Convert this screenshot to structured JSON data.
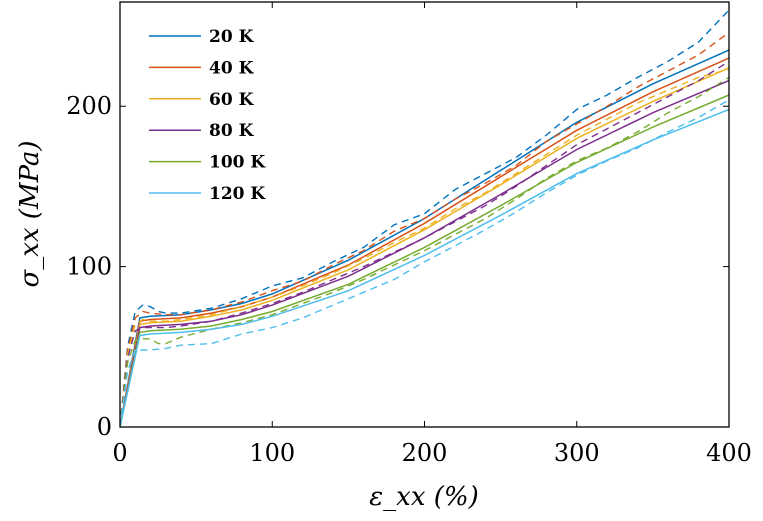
{
  "chart_data": {
    "type": "line",
    "xlabel": "ε_xx (%)",
    "ylabel": "σ_xx (MPa)",
    "xlim": [
      0,
      400
    ],
    "ylim": [
      0,
      265
    ],
    "x_ticks": [
      0,
      100,
      200,
      300,
      400
    ],
    "y_ticks": [
      0,
      100,
      200
    ],
    "grid": false,
    "legend_position": "top-left",
    "line_styles": {
      "solid": "model",
      "dashed": "experiment"
    },
    "series": [
      {
        "name": "20 K",
        "color": "#0072BD",
        "solid": [
          [
            0,
            0
          ],
          [
            13,
            68
          ],
          [
            20,
            69
          ],
          [
            40,
            70
          ],
          [
            60,
            73
          ],
          [
            80,
            77
          ],
          [
            100,
            83
          ],
          [
            150,
            104
          ],
          [
            200,
            130
          ],
          [
            250,
            160
          ],
          [
            300,
            190
          ],
          [
            350,
            214
          ],
          [
            400,
            235
          ]
        ],
        "dashed": [
          [
            0,
            0
          ],
          [
            5,
            50
          ],
          [
            10,
            72
          ],
          [
            15,
            76
          ],
          [
            20,
            75
          ],
          [
            25,
            72
          ],
          [
            30,
            71
          ],
          [
            40,
            71
          ],
          [
            60,
            74
          ],
          [
            80,
            80
          ],
          [
            100,
            88
          ],
          [
            120,
            93
          ],
          [
            140,
            103
          ],
          [
            160,
            112
          ],
          [
            180,
            126
          ],
          [
            200,
            133
          ],
          [
            220,
            148
          ],
          [
            240,
            158
          ],
          [
            260,
            168
          ],
          [
            280,
            182
          ],
          [
            300,
            198
          ],
          [
            320,
            207
          ],
          [
            340,
            218
          ],
          [
            360,
            228
          ],
          [
            380,
            240
          ],
          [
            400,
            260
          ]
        ]
      },
      {
        "name": "40 K",
        "color": "#D95319",
        "solid": [
          [
            0,
            0
          ],
          [
            13,
            66
          ],
          [
            20,
            67
          ],
          [
            40,
            68
          ],
          [
            60,
            71
          ],
          [
            80,
            75
          ],
          [
            100,
            81
          ],
          [
            150,
            101
          ],
          [
            200,
            127
          ],
          [
            250,
            156
          ],
          [
            300,
            185
          ],
          [
            350,
            209
          ],
          [
            400,
            230
          ]
        ],
        "dashed": [
          [
            0,
            0
          ],
          [
            5,
            48
          ],
          [
            10,
            68
          ],
          [
            15,
            72
          ],
          [
            20,
            71
          ],
          [
            30,
            70
          ],
          [
            40,
            70
          ],
          [
            60,
            73
          ],
          [
            80,
            78
          ],
          [
            100,
            85
          ],
          [
            120,
            91
          ],
          [
            140,
            101
          ],
          [
            160,
            110
          ],
          [
            180,
            122
          ],
          [
            200,
            130
          ],
          [
            220,
            142
          ],
          [
            240,
            152
          ],
          [
            260,
            163
          ],
          [
            280,
            178
          ],
          [
            300,
            189
          ],
          [
            320,
            200
          ],
          [
            340,
            212
          ],
          [
            360,
            222
          ],
          [
            380,
            232
          ],
          [
            400,
            246
          ]
        ]
      },
      {
        "name": "60 K",
        "color": "#EDB120",
        "solid": [
          [
            0,
            0
          ],
          [
            13,
            64
          ],
          [
            20,
            65
          ],
          [
            40,
            66
          ],
          [
            60,
            69
          ],
          [
            80,
            73
          ],
          [
            100,
            79
          ],
          [
            150,
            98
          ],
          [
            200,
            123
          ],
          [
            250,
            151
          ],
          [
            300,
            180
          ],
          [
            350,
            203
          ],
          [
            400,
            224
          ]
        ],
        "dashed": [
          [
            0,
            0
          ],
          [
            5,
            45
          ],
          [
            10,
            64
          ],
          [
            15,
            67
          ],
          [
            20,
            66
          ],
          [
            30,
            66
          ],
          [
            40,
            67
          ],
          [
            60,
            70
          ],
          [
            80,
            75
          ],
          [
            100,
            81
          ],
          [
            120,
            88
          ],
          [
            140,
            96
          ],
          [
            160,
            105
          ],
          [
            180,
            115
          ],
          [
            200,
            124
          ],
          [
            220,
            136
          ],
          [
            240,
            146
          ],
          [
            260,
            158
          ],
          [
            280,
            170
          ],
          [
            300,
            182
          ],
          [
            320,
            192
          ],
          [
            340,
            202
          ],
          [
            360,
            210
          ],
          [
            380,
            218
          ],
          [
            400,
            223
          ]
        ]
      },
      {
        "name": "80 K",
        "color": "#7E2F8E",
        "solid": [
          [
            0,
            0
          ],
          [
            13,
            62
          ],
          [
            20,
            63
          ],
          [
            40,
            64
          ],
          [
            60,
            66
          ],
          [
            80,
            70
          ],
          [
            100,
            76
          ],
          [
            150,
            94
          ],
          [
            200,
            118
          ],
          [
            250,
            145
          ],
          [
            300,
            173
          ],
          [
            350,
            196
          ],
          [
            400,
            216
          ]
        ],
        "dashed": [
          [
            0,
            0
          ],
          [
            5,
            43
          ],
          [
            10,
            60
          ],
          [
            15,
            62
          ],
          [
            20,
            62
          ],
          [
            30,
            62
          ],
          [
            40,
            63
          ],
          [
            60,
            66
          ],
          [
            80,
            71
          ],
          [
            100,
            77
          ],
          [
            120,
            84
          ],
          [
            140,
            92
          ],
          [
            160,
            100
          ],
          [
            180,
            109
          ],
          [
            200,
            118
          ],
          [
            220,
            128
          ],
          [
            240,
            138
          ],
          [
            260,
            150
          ],
          [
            280,
            163
          ],
          [
            300,
            176
          ],
          [
            320,
            186
          ],
          [
            340,
            196
          ],
          [
            360,
            206
          ],
          [
            380,
            216
          ],
          [
            400,
            228
          ]
        ]
      },
      {
        "name": "100 K",
        "color": "#77AC30",
        "solid": [
          [
            0,
            0
          ],
          [
            13,
            59
          ],
          [
            20,
            60
          ],
          [
            40,
            61
          ],
          [
            60,
            63
          ],
          [
            80,
            67
          ],
          [
            100,
            72
          ],
          [
            150,
            89
          ],
          [
            200,
            112
          ],
          [
            250,
            138
          ],
          [
            300,
            165
          ],
          [
            350,
            187
          ],
          [
            400,
            207
          ]
        ],
        "dashed": [
          [
            0,
            0
          ],
          [
            5,
            40
          ],
          [
            10,
            54
          ],
          [
            15,
            55
          ],
          [
            20,
            55
          ],
          [
            25,
            52
          ],
          [
            30,
            52
          ],
          [
            40,
            56
          ],
          [
            60,
            61
          ],
          [
            80,
            65
          ],
          [
            100,
            70
          ],
          [
            120,
            77
          ],
          [
            140,
            84
          ],
          [
            160,
            92
          ],
          [
            180,
            101
          ],
          [
            200,
            110
          ],
          [
            220,
            120
          ],
          [
            240,
            130
          ],
          [
            260,
            142
          ],
          [
            280,
            155
          ],
          [
            300,
            166
          ],
          [
            320,
            174
          ],
          [
            340,
            184
          ],
          [
            360,
            196
          ],
          [
            380,
            206
          ],
          [
            400,
            218
          ]
        ]
      },
      {
        "name": "120 K",
        "color": "#4DBEEE",
        "solid": [
          [
            0,
            0
          ],
          [
            13,
            57
          ],
          [
            20,
            58
          ],
          [
            40,
            59
          ],
          [
            60,
            61
          ],
          [
            80,
            64
          ],
          [
            100,
            69
          ],
          [
            150,
            85
          ],
          [
            200,
            107
          ],
          [
            250,
            132
          ],
          [
            300,
            158
          ],
          [
            350,
            179
          ],
          [
            400,
            198
          ]
        ],
        "dashed": [
          [
            0,
            0
          ],
          [
            5,
            35
          ],
          [
            10,
            48
          ],
          [
            15,
            48
          ],
          [
            20,
            48
          ],
          [
            30,
            49
          ],
          [
            40,
            51
          ],
          [
            60,
            52
          ],
          [
            80,
            58
          ],
          [
            100,
            62
          ],
          [
            120,
            68
          ],
          [
            140,
            76
          ],
          [
            160,
            84
          ],
          [
            180,
            92
          ],
          [
            200,
            103
          ],
          [
            220,
            113
          ],
          [
            240,
            123
          ],
          [
            260,
            134
          ],
          [
            280,
            146
          ],
          [
            300,
            157
          ],
          [
            320,
            166
          ],
          [
            340,
            174
          ],
          [
            360,
            184
          ],
          [
            380,
            193
          ],
          [
            400,
            204
          ]
        ]
      }
    ]
  }
}
